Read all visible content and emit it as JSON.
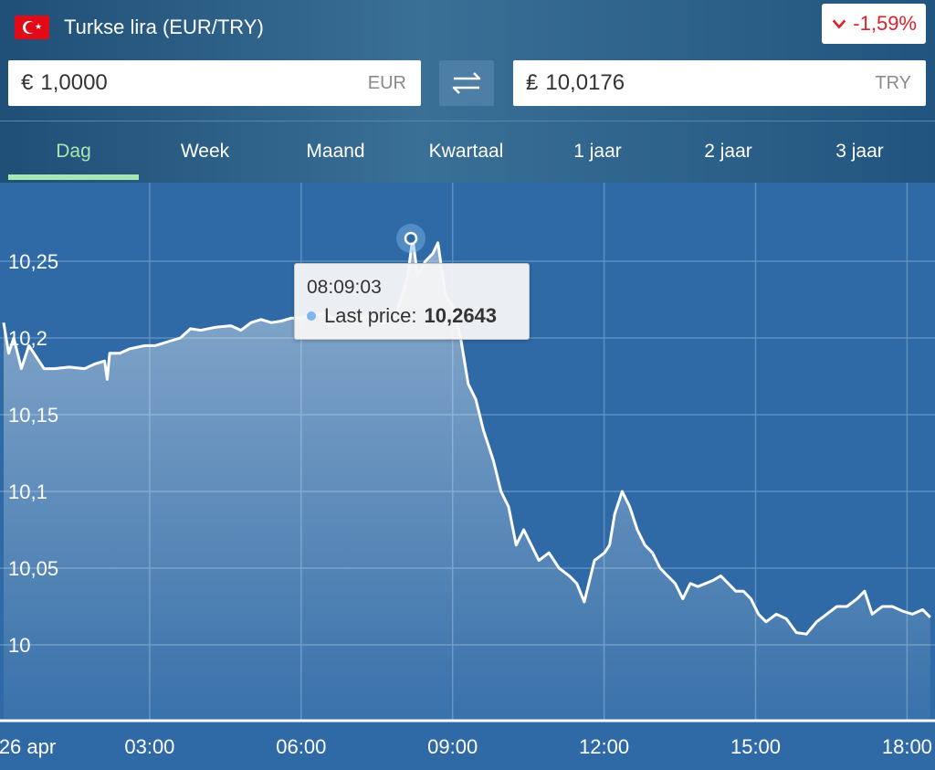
{
  "header": {
    "flag_icon": "turkey-flag-icon",
    "title": "Turkse lira (EUR/TRY)",
    "change": "-1,59%",
    "change_icon": "chevron-down-icon",
    "change_color": "#d8232a"
  },
  "converter": {
    "from": {
      "symbol": "€",
      "value": "1,0000",
      "code": "EUR"
    },
    "swap_icon": "swap-arrows-icon",
    "to": {
      "symbol": "₤",
      "value": "10,0176",
      "code": "TRY"
    }
  },
  "tabs": [
    {
      "label": "Dag",
      "active": true
    },
    {
      "label": "Week"
    },
    {
      "label": "Maand"
    },
    {
      "label": "Kwartaal"
    },
    {
      "label": "1 jaar"
    },
    {
      "label": "2 jaar"
    },
    {
      "label": "3 jaar"
    }
  ],
  "tooltip": {
    "time": "08:09:03",
    "label": "Last price:",
    "value": "10,2643"
  },
  "chart_data": {
    "type": "area",
    "series": [
      {
        "values": [
          [
            0.0,
            10.21
          ],
          [
            0.1,
            10.19
          ],
          [
            0.2,
            10.2
          ],
          [
            0.35,
            10.18
          ],
          [
            0.5,
            10.195
          ],
          [
            0.6,
            10.19
          ],
          [
            0.8,
            10.18
          ],
          [
            1.0,
            10.18
          ],
          [
            1.3,
            10.181
          ],
          [
            1.6,
            10.18
          ],
          [
            1.8,
            10.183
          ],
          [
            2.0,
            10.185
          ],
          [
            2.05,
            10.173
          ],
          [
            2.1,
            10.19
          ],
          [
            2.3,
            10.19
          ],
          [
            2.5,
            10.193
          ],
          [
            2.8,
            10.195
          ],
          [
            3.0,
            10.195
          ],
          [
            3.2,
            10.197
          ],
          [
            3.5,
            10.2
          ],
          [
            3.7,
            10.206
          ],
          [
            3.9,
            10.205
          ],
          [
            4.2,
            10.207
          ],
          [
            4.5,
            10.208
          ],
          [
            4.7,
            10.205
          ],
          [
            4.9,
            10.21
          ],
          [
            5.1,
            10.212
          ],
          [
            5.3,
            10.21
          ],
          [
            5.5,
            10.211
          ],
          [
            5.7,
            10.213
          ],
          [
            5.9,
            10.213
          ],
          [
            6.0,
            10.214
          ],
          [
            6.3,
            10.216
          ],
          [
            6.6,
            10.212
          ],
          [
            6.9,
            10.212
          ],
          [
            7.2,
            10.214
          ],
          [
            7.5,
            10.21
          ],
          [
            7.8,
            10.218
          ],
          [
            8.0,
            10.24
          ],
          [
            8.1,
            10.265
          ],
          [
            8.2,
            10.24
          ],
          [
            8.35,
            10.25
          ],
          [
            8.5,
            10.255
          ],
          [
            8.6,
            10.262
          ],
          [
            8.75,
            10.228
          ],
          [
            8.9,
            10.22
          ],
          [
            9.05,
            10.2
          ],
          [
            9.2,
            10.17
          ],
          [
            9.35,
            10.16
          ],
          [
            9.5,
            10.14
          ],
          [
            9.7,
            10.12
          ],
          [
            9.85,
            10.1
          ],
          [
            10.0,
            10.09
          ],
          [
            10.15,
            10.065
          ],
          [
            10.3,
            10.075
          ],
          [
            10.45,
            10.065
          ],
          [
            10.6,
            10.055
          ],
          [
            10.8,
            10.06
          ],
          [
            11.0,
            10.05
          ],
          [
            11.2,
            10.045
          ],
          [
            11.35,
            10.04
          ],
          [
            11.5,
            10.028
          ],
          [
            11.7,
            10.055
          ],
          [
            11.9,
            10.06
          ],
          [
            12.0,
            10.065
          ],
          [
            12.1,
            10.085
          ],
          [
            12.25,
            10.1
          ],
          [
            12.4,
            10.09
          ],
          [
            12.55,
            10.075
          ],
          [
            12.7,
            10.065
          ],
          [
            12.85,
            10.06
          ],
          [
            13.0,
            10.05
          ],
          [
            13.15,
            10.045
          ],
          [
            13.3,
            10.04
          ],
          [
            13.45,
            10.03
          ],
          [
            13.6,
            10.04
          ],
          [
            13.75,
            10.038
          ],
          [
            13.9,
            10.04
          ],
          [
            14.05,
            10.042
          ],
          [
            14.2,
            10.045
          ],
          [
            14.35,
            10.04
          ],
          [
            14.5,
            10.035
          ],
          [
            14.65,
            10.035
          ],
          [
            14.8,
            10.03
          ],
          [
            14.95,
            10.02
          ],
          [
            15.1,
            10.015
          ],
          [
            15.3,
            10.02
          ],
          [
            15.5,
            10.017
          ],
          [
            15.7,
            10.008
          ],
          [
            15.9,
            10.007
          ],
          [
            16.1,
            10.015
          ],
          [
            16.3,
            10.02
          ],
          [
            16.5,
            10.025
          ],
          [
            16.7,
            10.025
          ],
          [
            16.9,
            10.03
          ],
          [
            17.05,
            10.035
          ],
          [
            17.2,
            10.02
          ],
          [
            17.4,
            10.025
          ],
          [
            17.6,
            10.025
          ],
          [
            17.8,
            10.022
          ],
          [
            18.0,
            10.02
          ],
          [
            18.2,
            10.023
          ],
          [
            18.35,
            10.018
          ]
        ]
      }
    ],
    "x_axis": {
      "unit": "hour of day",
      "tick_values": [
        0,
        3,
        6,
        9,
        12,
        15,
        18
      ],
      "tick_labels": [
        "26 apr",
        "03:00",
        "06:00",
        "09:00",
        "12:00",
        "15:00",
        "18:00"
      ],
      "range": [
        0,
        18.4
      ]
    },
    "y_axis": {
      "tick_values": [
        10,
        10.05,
        10.1,
        10.15,
        10.2,
        10.25
      ],
      "tick_labels": [
        "10",
        "10,05",
        "10,1",
        "10,15",
        "10,2",
        "10,25"
      ],
      "range": [
        9.975,
        10.3
      ]
    },
    "highlight_point": [
      8.1,
      10.2643
    ],
    "grid": true,
    "line_color": "#ffffff",
    "background_color": "#2f6aa6"
  }
}
